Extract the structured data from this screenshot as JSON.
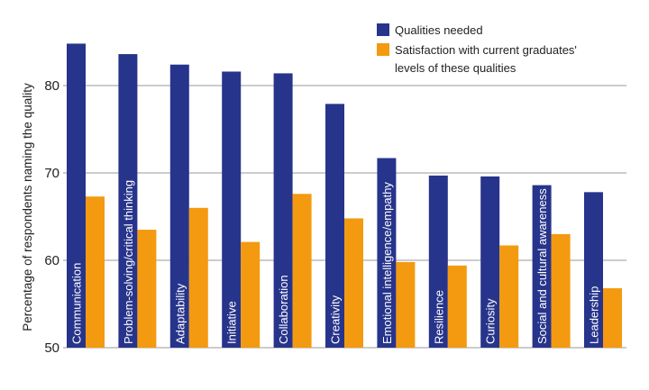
{
  "chart_data": {
    "type": "bar",
    "title": "",
    "xlabel": "",
    "ylabel": "Percentage of respondents naming the quality",
    "ylim": [
      50,
      86
    ],
    "yticks": [
      50,
      60,
      70,
      80
    ],
    "grid": true,
    "legend_position": "top-right",
    "categories": [
      "Communication",
      "Problem-solving/critical thinking",
      "Adaptability",
      "Initiative",
      "Collaboration",
      "Creativity",
      "Emotional intelligence/empathy",
      "Resilience",
      "Curiosity",
      "Social and cultural awareness",
      "Leadership"
    ],
    "series": [
      {
        "name": "Qualities needed",
        "color": "#27348b",
        "values": [
          84.8,
          83.6,
          82.4,
          81.6,
          81.4,
          77.9,
          71.7,
          69.7,
          69.6,
          68.6,
          67.8
        ]
      },
      {
        "name": "Satisfaction with current graduates' levels of these qualities",
        "color": "#f39a10",
        "values": [
          67.3,
          63.5,
          66.0,
          62.1,
          67.6,
          64.8,
          59.8,
          59.4,
          61.7,
          63.0,
          56.8
        ]
      }
    ],
    "legend": [
      {
        "label": "Qualities needed",
        "color": "#27348b"
      },
      {
        "label": "Satisfaction with current graduates'",
        "color": "#f39a10"
      },
      {
        "label": "levels of these qualities",
        "color": ""
      }
    ]
  }
}
